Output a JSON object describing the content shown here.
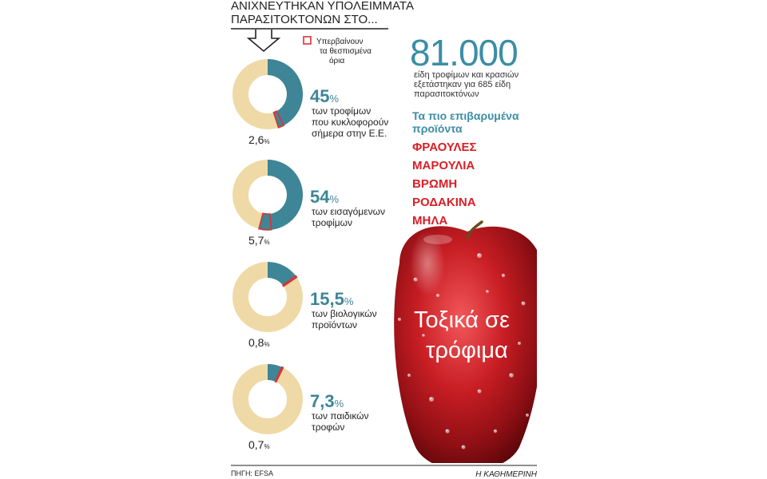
{
  "header": {
    "line1": "ΑΝΙΧΝΕΥΤΗΚΑΝ ΥΠΟΛΕΙΜΜΑΤΑ",
    "line2": "ΠΑΡΑΣΙΤΟΚΤΟΝΩΝ ΣΤΟ..."
  },
  "legend": {
    "line1": "Υπερβαίνουν",
    "line2": "τα θεσπισμένα",
    "line3": "όρια",
    "swatch_color": "#e03030"
  },
  "stats": {
    "big_number": "81.000",
    "desc1": "είδη τροφίμων και κρασιών",
    "desc2": "εξετάστηκαν για 685 είδη",
    "desc3": "παρασιτοκτόνων"
  },
  "products": {
    "title1": "Τα πιο επιβαρυμένα",
    "title2": "προϊόντα",
    "items": [
      "ΦΡΑΟΥΛΕΣ",
      "ΜΑΡΟΥΛΙΑ",
      "ΒΡΩΜΗ",
      "ΡΟΔΑΚΙΝΑ",
      "ΜΗΛΑ"
    ]
  },
  "apple_title": {
    "line1": "Τοξικά σε",
    "line2": "τρόφιμα"
  },
  "source": "ΠΗΓΗ: EFSA",
  "credit": "Η ΚΑΘΗΜΕΡΙΝΗ",
  "colors": {
    "teal": "#3d8597",
    "beige": "#efd9a6",
    "red": "#e03030",
    "title_teal": "#3b8ea5",
    "product_red": "#d81f26"
  },
  "chart_data": [
    {
      "type": "pie",
      "value": 45,
      "value_label": "45",
      "exceed": 2.6,
      "exceed_label": "2,6",
      "desc": [
        "των τροφίμων",
        "που κυκλοφορούν",
        "σήμερα στην Ε.Ε."
      ]
    },
    {
      "type": "pie",
      "value": 54,
      "value_label": "54",
      "exceed": 5.7,
      "exceed_label": "5,7",
      "desc": [
        "των εισαγόμενων",
        "τροφίμων"
      ]
    },
    {
      "type": "pie",
      "value": 15.5,
      "value_label": "15,5",
      "exceed": 0.8,
      "exceed_label": "0,8",
      "desc": [
        "των βιολογικών",
        "προϊόντων"
      ]
    },
    {
      "type": "pie",
      "value": 7.3,
      "value_label": "7,3",
      "exceed": 0.7,
      "exceed_label": "0,7",
      "desc": [
        "των παιδικών",
        "τροφών"
      ]
    }
  ]
}
